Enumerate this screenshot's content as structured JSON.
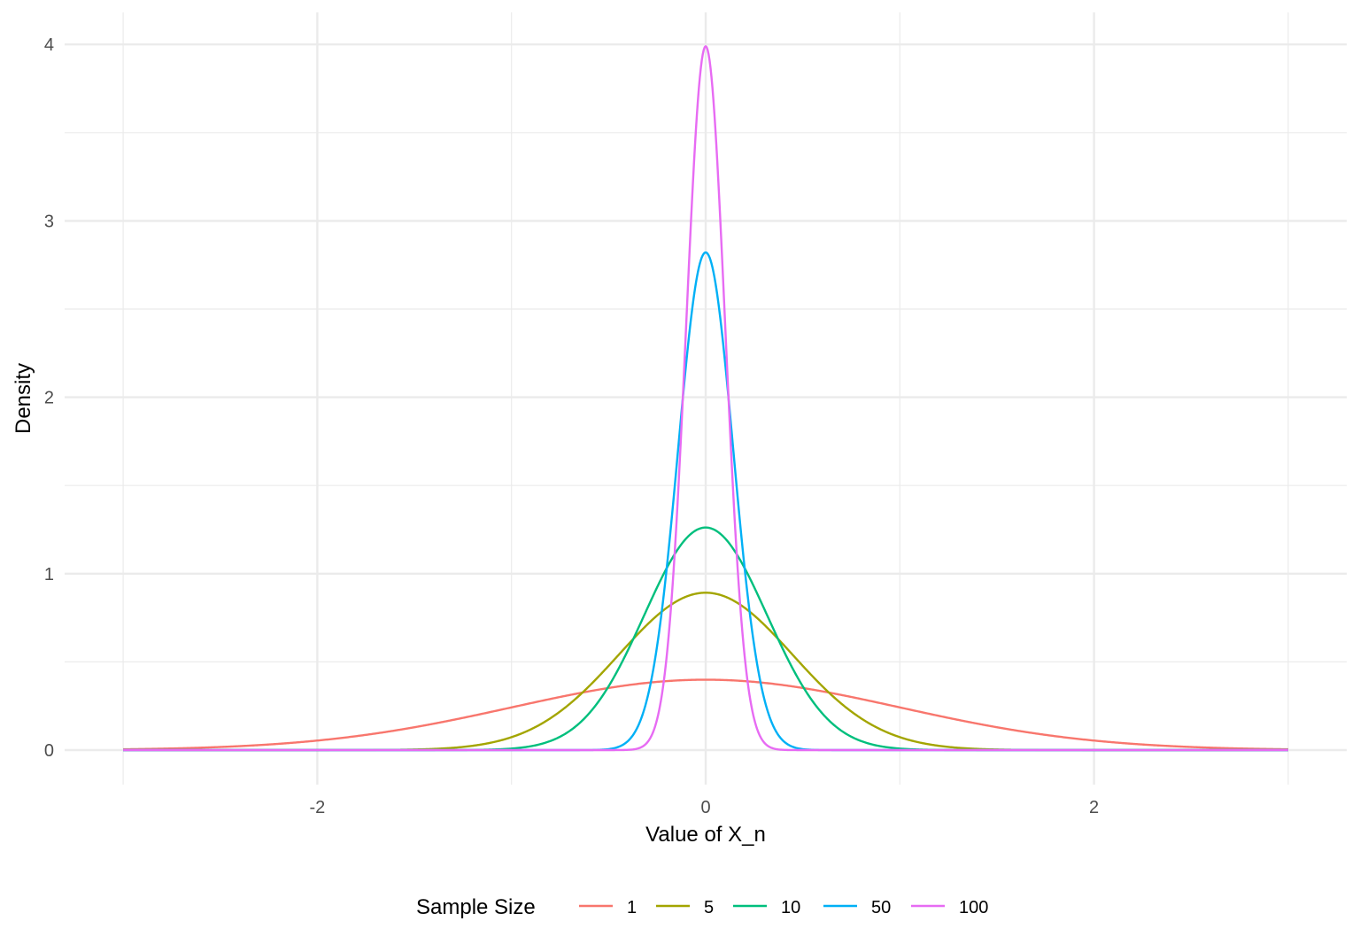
{
  "chart_data": {
    "type": "line",
    "title": "",
    "xlabel": "Value of X_n",
    "ylabel": "Density",
    "xlim": [
      -3,
      3
    ],
    "ylim": [
      0,
      4
    ],
    "x_ticks": [
      -2,
      0,
      2
    ],
    "y_ticks": [
      0,
      1,
      2,
      3,
      4
    ],
    "grid": true,
    "legend": {
      "title": "Sample Size",
      "position": "bottom"
    },
    "curve": "normal density, mean 0, sd = 1/sqrt(n)",
    "series": [
      {
        "name": "1",
        "n": 1,
        "color": "#F8766D",
        "peak": 0.399
      },
      {
        "name": "5",
        "n": 5,
        "color": "#A3A500",
        "peak": 0.892
      },
      {
        "name": "10",
        "n": 10,
        "color": "#00BF7D",
        "peak": 1.262
      },
      {
        "name": "50",
        "n": 50,
        "color": "#00B0F6",
        "peak": 2.821
      },
      {
        "name": "100",
        "n": 100,
        "color": "#E76BF3",
        "peak": 3.989
      }
    ]
  }
}
